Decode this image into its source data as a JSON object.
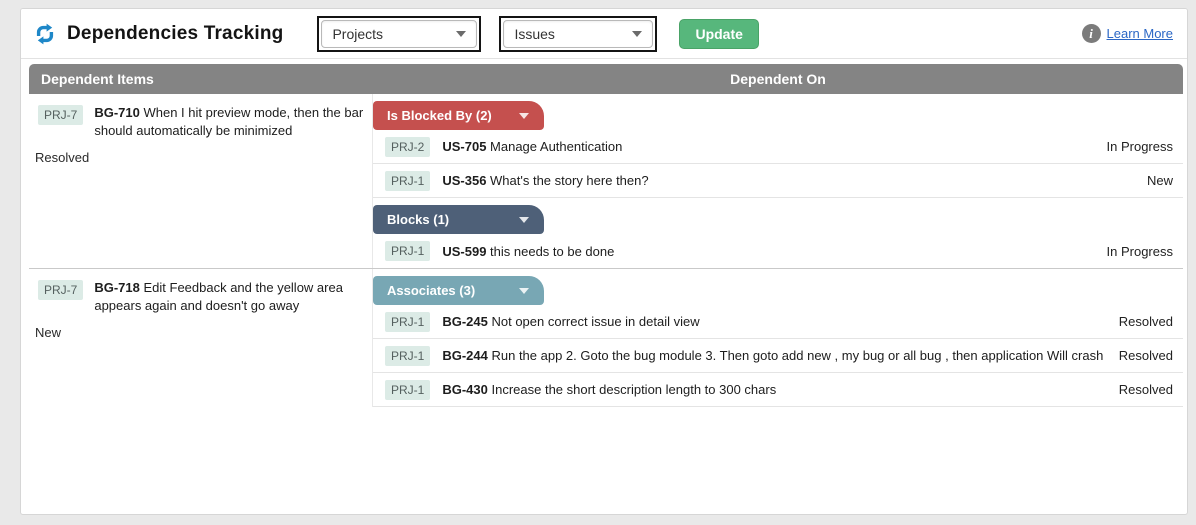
{
  "header": {
    "title": "Dependencies Tracking",
    "app_icon": "sync-icon",
    "projects_dropdown_value": "Projects",
    "issues_dropdown_value": "Issues",
    "update_button": "Update",
    "info_icon_glyph": "i",
    "learn_more": "Learn More"
  },
  "colors": {
    "blocked_by_tab": "#c5504e",
    "blocks_tab": "#4e6078",
    "associates_tab": "#78a7b4",
    "header_bar": "#848484",
    "update_button": "#57b77c",
    "badge_bg": "#dcebe6",
    "link_blue": "#2b67c5",
    "app_icon_blue": "#1e87c8"
  },
  "table": {
    "columns": [
      "Dependent Items",
      "Dependent On"
    ],
    "groups": [
      {
        "source": {
          "project": "PRJ-7",
          "key": "BG-710",
          "summary": "When I hit preview mode, then the bar should automatically be minimized",
          "status": "Resolved"
        },
        "sections": [
          {
            "label": "Is Blocked By (2)",
            "type": "blocked-by",
            "color": "#c5504e",
            "rows": [
              {
                "project": "PRJ-2",
                "key": "US-705",
                "summary": "Manage Authentication",
                "status": "In Progress"
              },
              {
                "project": "PRJ-1",
                "key": "US-356",
                "summary": "What's the story here then?",
                "status": "New"
              }
            ]
          },
          {
            "label": "Blocks (1)",
            "type": "blocks",
            "color": "#4e6078",
            "rows": [
              {
                "project": "PRJ-1",
                "key": "US-599",
                "summary": "this needs to be done",
                "status": "In Progress"
              }
            ]
          }
        ]
      },
      {
        "source": {
          "project": "PRJ-7",
          "key": "BG-718",
          "summary": "Edit Feedback and the yellow area appears again and doesn't go away",
          "status": "New"
        },
        "sections": [
          {
            "label": "Associates (3)",
            "type": "associates",
            "color": "#78a7b4",
            "rows": [
              {
                "project": "PRJ-1",
                "key": "BG-245",
                "summary": "Not open correct issue in detail view",
                "status": "Resolved"
              },
              {
                "project": "PRJ-1",
                "key": "BG-244",
                "summary": "Run the app 2. Goto the bug module 3. Then goto add new , my bug or all bug , then application Will crash",
                "status": "Resolved"
              },
              {
                "project": "PRJ-1",
                "key": "BG-430",
                "summary": "Increase the short description length to 300 chars",
                "status": "Resolved"
              }
            ]
          }
        ]
      }
    ]
  }
}
